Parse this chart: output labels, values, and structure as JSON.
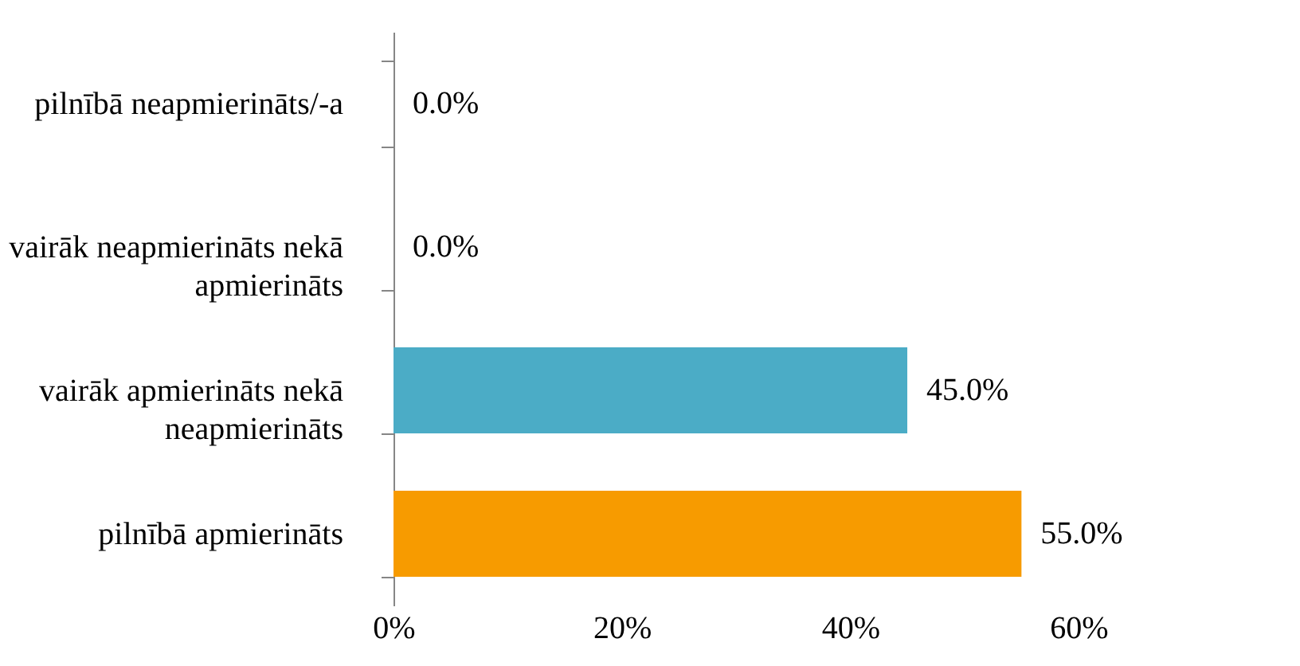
{
  "chart_data": {
    "type": "bar",
    "orientation": "horizontal",
    "categories": [
      "pilnībā neapmierināts/-a",
      "vairāk neapmierināts nekā apmierināts",
      "vairāk apmierināts nekā neapmierināts",
      "pilnībā apmierināts"
    ],
    "values": [
      0,
      0,
      45,
      55
    ],
    "colors": [
      "#4bacc6",
      "#4bacc6",
      "#4bacc6",
      "#f79b00"
    ],
    "value_labels": [
      "0.0%",
      "0.0%",
      "45.0%",
      "55.0%"
    ],
    "xlim": [
      0,
      60
    ],
    "xticks": [
      {
        "value": 0,
        "label": "0%"
      },
      {
        "value": 20,
        "label": "20%"
      },
      {
        "value": 40,
        "label": "40%"
      },
      {
        "value": 60,
        "label": "60%"
      }
    ],
    "grid": false
  }
}
